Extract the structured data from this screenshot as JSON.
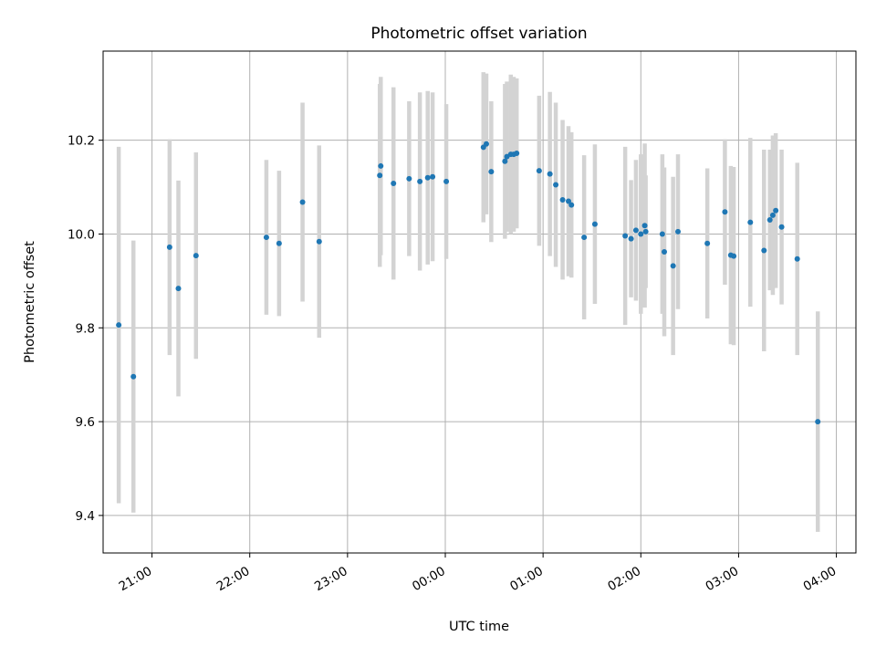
{
  "chart_data": {
    "type": "scatter",
    "title": "Photometric offset variation",
    "xlabel": "UTC time",
    "ylabel": "Photometric offset",
    "x_unit": "hours_relative_to_midnight_utc",
    "xlim": [
      -3.5,
      4.2
    ],
    "ylim": [
      9.32,
      10.39
    ],
    "x_ticks": [
      {
        "value": -3,
        "label": "21:00"
      },
      {
        "value": -2,
        "label": "22:00"
      },
      {
        "value": -1,
        "label": "23:00"
      },
      {
        "value": 0,
        "label": "00:00"
      },
      {
        "value": 1,
        "label": "01:00"
      },
      {
        "value": 2,
        "label": "02:00"
      },
      {
        "value": 3,
        "label": "03:00"
      },
      {
        "value": 4,
        "label": "04:00"
      }
    ],
    "y_ticks": [
      {
        "value": 9.4,
        "label": "9.4"
      },
      {
        "value": 9.6,
        "label": "9.6"
      },
      {
        "value": 9.8,
        "label": "9.8"
      },
      {
        "value": 10.0,
        "label": "10.0"
      },
      {
        "value": 10.2,
        "label": "10.2"
      }
    ],
    "grid": true,
    "point_color": "#1f77b4",
    "errorbar_color": "#d3d3d3",
    "points": [
      {
        "x": -3.34,
        "y": 9.806,
        "err": 0.38
      },
      {
        "x": -3.19,
        "y": 9.696,
        "err": 0.29
      },
      {
        "x": -2.82,
        "y": 9.972,
        "err": 0.23
      },
      {
        "x": -2.73,
        "y": 9.884,
        "err": 0.23
      },
      {
        "x": -2.55,
        "y": 9.954,
        "err": 0.22
      },
      {
        "x": -1.83,
        "y": 9.993,
        "err": 0.165
      },
      {
        "x": -1.7,
        "y": 9.98,
        "err": 0.155
      },
      {
        "x": -1.46,
        "y": 10.068,
        "err": 0.212
      },
      {
        "x": -1.29,
        "y": 9.984,
        "err": 0.205
      },
      {
        "x": -0.67,
        "y": 10.125,
        "err": 0.195
      },
      {
        "x": -0.66,
        "y": 10.145,
        "err": 0.19
      },
      {
        "x": -0.53,
        "y": 10.108,
        "err": 0.205
      },
      {
        "x": -0.37,
        "y": 10.118,
        "err": 0.165
      },
      {
        "x": -0.26,
        "y": 10.112,
        "err": 0.19
      },
      {
        "x": -0.18,
        "y": 10.12,
        "err": 0.185
      },
      {
        "x": -0.13,
        "y": 10.122,
        "err": 0.18
      },
      {
        "x": 0.01,
        "y": 10.112,
        "err": 0.165
      },
      {
        "x": 0.39,
        "y": 10.185,
        "err": 0.16
      },
      {
        "x": 0.42,
        "y": 10.192,
        "err": 0.15
      },
      {
        "x": 0.47,
        "y": 10.133,
        "err": 0.15
      },
      {
        "x": 0.61,
        "y": 10.155,
        "err": 0.165
      },
      {
        "x": 0.63,
        "y": 10.165,
        "err": 0.16
      },
      {
        "x": 0.67,
        "y": 10.17,
        "err": 0.17
      },
      {
        "x": 0.7,
        "y": 10.17,
        "err": 0.165
      },
      {
        "x": 0.73,
        "y": 10.172,
        "err": 0.16
      },
      {
        "x": 0.96,
        "y": 10.135,
        "err": 0.16
      },
      {
        "x": 1.07,
        "y": 10.128,
        "err": 0.175
      },
      {
        "x": 1.13,
        "y": 10.105,
        "err": 0.175
      },
      {
        "x": 1.2,
        "y": 10.073,
        "err": 0.17
      },
      {
        "x": 1.26,
        "y": 10.07,
        "err": 0.16
      },
      {
        "x": 1.29,
        "y": 10.062,
        "err": 0.155
      },
      {
        "x": 1.42,
        "y": 9.993,
        "err": 0.175
      },
      {
        "x": 1.53,
        "y": 10.021,
        "err": 0.17
      },
      {
        "x": 1.84,
        "y": 9.996,
        "err": 0.19
      },
      {
        "x": 1.9,
        "y": 9.99,
        "err": 0.125
      },
      {
        "x": 1.95,
        "y": 10.008,
        "err": 0.15
      },
      {
        "x": 2.0,
        "y": 10.0,
        "err": 0.17
      },
      {
        "x": 2.04,
        "y": 10.018,
        "err": 0.175
      },
      {
        "x": 2.05,
        "y": 10.005,
        "err": 0.12
      },
      {
        "x": 2.22,
        "y": 10.0,
        "err": 0.17
      },
      {
        "x": 2.24,
        "y": 9.962,
        "err": 0.18
      },
      {
        "x": 2.33,
        "y": 9.932,
        "err": 0.19
      },
      {
        "x": 2.38,
        "y": 10.005,
        "err": 0.165
      },
      {
        "x": 2.68,
        "y": 9.98,
        "err": 0.16
      },
      {
        "x": 2.86,
        "y": 10.047,
        "err": 0.155
      },
      {
        "x": 2.92,
        "y": 9.955,
        "err": 0.19
      },
      {
        "x": 2.95,
        "y": 9.953,
        "err": 0.19
      },
      {
        "x": 3.12,
        "y": 10.025,
        "err": 0.18
      },
      {
        "x": 3.26,
        "y": 9.965,
        "err": 0.215
      },
      {
        "x": 3.32,
        "y": 10.03,
        "err": 0.15
      },
      {
        "x": 3.35,
        "y": 10.04,
        "err": 0.17
      },
      {
        "x": 3.38,
        "y": 10.05,
        "err": 0.165
      },
      {
        "x": 3.44,
        "y": 10.015,
        "err": 0.165
      },
      {
        "x": 3.6,
        "y": 9.947,
        "err": 0.205
      },
      {
        "x": 3.81,
        "y": 9.6,
        "err": 0.235
      }
    ]
  }
}
